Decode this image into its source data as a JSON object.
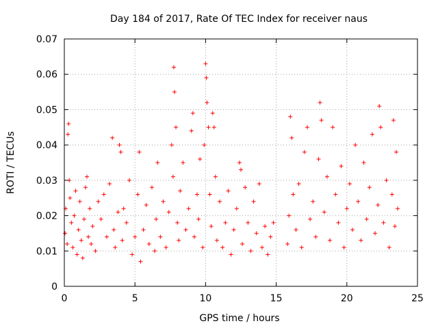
{
  "chart_data": {
    "type": "scatter",
    "title": "Day 184 of 2017, Rate Of TEC Index for receiver naus",
    "xlabel": "GPS time / hours",
    "ylabel": "ROTI / TECUs",
    "xlim": [
      0,
      25
    ],
    "ylim": [
      0,
      0.07
    ],
    "x_ticks": [
      0,
      5,
      10,
      15,
      20,
      25
    ],
    "x_tick_labels": [
      "0",
      "5",
      "10",
      "15",
      "20",
      "25"
    ],
    "y_ticks": [
      0,
      0.01,
      0.02,
      0.03,
      0.04,
      0.05,
      0.06,
      0.07
    ],
    "y_tick_labels": [
      "0",
      "0.01",
      "0.02",
      "0.03",
      "0.04",
      "0.05",
      "0.06",
      "0.07"
    ],
    "grid": true,
    "marker": "plus",
    "color": "#ff0000",
    "series": [
      {
        "values_xy": [
          [
            0.05,
            0.015
          ],
          [
            0.1,
            0.022
          ],
          [
            0.2,
            0.012
          ],
          [
            0.25,
            0.043
          ],
          [
            0.3,
            0.046
          ],
          [
            0.35,
            0.03
          ],
          [
            0.4,
            0.025
          ],
          [
            0.5,
            0.018
          ],
          [
            0.6,
            0.011
          ],
          [
            0.7,
            0.02
          ],
          [
            0.8,
            0.027
          ],
          [
            0.9,
            0.009
          ],
          [
            1.0,
            0.016
          ],
          [
            1.1,
            0.024
          ],
          [
            1.2,
            0.013
          ],
          [
            1.3,
            0.008
          ],
          [
            1.4,
            0.019
          ],
          [
            1.5,
            0.028
          ],
          [
            1.6,
            0.031
          ],
          [
            1.7,
            0.014
          ],
          [
            1.8,
            0.022
          ],
          [
            1.9,
            0.012
          ],
          [
            2.0,
            0.017
          ],
          [
            2.2,
            0.01
          ],
          [
            2.4,
            0.024
          ],
          [
            2.6,
            0.019
          ],
          [
            2.8,
            0.026
          ],
          [
            3.0,
            0.014
          ],
          [
            3.2,
            0.029
          ],
          [
            3.4,
            0.042
          ],
          [
            3.5,
            0.016
          ],
          [
            3.6,
            0.011
          ],
          [
            3.8,
            0.021
          ],
          [
            3.9,
            0.04
          ],
          [
            4.0,
            0.038
          ],
          [
            4.1,
            0.013
          ],
          [
            4.2,
            0.022
          ],
          [
            4.4,
            0.018
          ],
          [
            4.6,
            0.03
          ],
          [
            4.8,
            0.009
          ],
          [
            5.0,
            0.014
          ],
          [
            5.2,
            0.026
          ],
          [
            5.3,
            0.038
          ],
          [
            5.4,
            0.007
          ],
          [
            5.6,
            0.016
          ],
          [
            5.8,
            0.023
          ],
          [
            6.0,
            0.012
          ],
          [
            6.2,
            0.028
          ],
          [
            6.4,
            0.01
          ],
          [
            6.5,
            0.019
          ],
          [
            6.6,
            0.035
          ],
          [
            6.8,
            0.014
          ],
          [
            7.0,
            0.024
          ],
          [
            7.2,
            0.011
          ],
          [
            7.4,
            0.021
          ],
          [
            7.6,
            0.04
          ],
          [
            7.7,
            0.031
          ],
          [
            7.75,
            0.062
          ],
          [
            7.8,
            0.055
          ],
          [
            7.9,
            0.045
          ],
          [
            8.0,
            0.018
          ],
          [
            8.1,
            0.013
          ],
          [
            8.2,
            0.027
          ],
          [
            8.4,
            0.035
          ],
          [
            8.6,
            0.016
          ],
          [
            8.8,
            0.022
          ],
          [
            9.0,
            0.044
          ],
          [
            9.1,
            0.049
          ],
          [
            9.2,
            0.014
          ],
          [
            9.4,
            0.026
          ],
          [
            9.5,
            0.019
          ],
          [
            9.6,
            0.036
          ],
          [
            9.8,
            0.011
          ],
          [
            9.9,
            0.04
          ],
          [
            10.0,
            0.063
          ],
          [
            10.05,
            0.059
          ],
          [
            10.1,
            0.052
          ],
          [
            10.2,
            0.045
          ],
          [
            10.3,
            0.026
          ],
          [
            10.4,
            0.017
          ],
          [
            10.5,
            0.049
          ],
          [
            10.6,
            0.045
          ],
          [
            10.7,
            0.031
          ],
          [
            10.8,
            0.013
          ],
          [
            11.0,
            0.024
          ],
          [
            11.2,
            0.011
          ],
          [
            11.4,
            0.018
          ],
          [
            11.6,
            0.027
          ],
          [
            11.8,
            0.009
          ],
          [
            12.0,
            0.016
          ],
          [
            12.2,
            0.022
          ],
          [
            12.4,
            0.035
          ],
          [
            12.5,
            0.033
          ],
          [
            12.6,
            0.012
          ],
          [
            12.8,
            0.028
          ],
          [
            13.0,
            0.018
          ],
          [
            13.2,
            0.01
          ],
          [
            13.4,
            0.024
          ],
          [
            13.6,
            0.015
          ],
          [
            13.8,
            0.029
          ],
          [
            14.0,
            0.011
          ],
          [
            14.2,
            0.017
          ],
          [
            14.4,
            0.009
          ],
          [
            14.6,
            0.014
          ],
          [
            14.8,
            0.018
          ],
          [
            15.8,
            0.012
          ],
          [
            15.9,
            0.02
          ],
          [
            16.0,
            0.048
          ],
          [
            16.1,
            0.042
          ],
          [
            16.2,
            0.026
          ],
          [
            16.4,
            0.016
          ],
          [
            16.6,
            0.029
          ],
          [
            16.8,
            0.011
          ],
          [
            17.0,
            0.038
          ],
          [
            17.2,
            0.045
          ],
          [
            17.4,
            0.019
          ],
          [
            17.6,
            0.024
          ],
          [
            17.8,
            0.014
          ],
          [
            18.0,
            0.036
          ],
          [
            18.1,
            0.052
          ],
          [
            18.2,
            0.047
          ],
          [
            18.4,
            0.021
          ],
          [
            18.6,
            0.031
          ],
          [
            18.8,
            0.013
          ],
          [
            19.0,
            0.045
          ],
          [
            19.2,
            0.026
          ],
          [
            19.4,
            0.018
          ],
          [
            19.6,
            0.034
          ],
          [
            19.8,
            0.011
          ],
          [
            20.0,
            0.022
          ],
          [
            20.2,
            0.029
          ],
          [
            20.4,
            0.016
          ],
          [
            20.6,
            0.04
          ],
          [
            20.8,
            0.024
          ],
          [
            21.0,
            0.013
          ],
          [
            21.2,
            0.035
          ],
          [
            21.4,
            0.019
          ],
          [
            21.6,
            0.028
          ],
          [
            21.8,
            0.043
          ],
          [
            22.0,
            0.015
          ],
          [
            22.2,
            0.023
          ],
          [
            22.3,
            0.051
          ],
          [
            22.4,
            0.045
          ],
          [
            22.6,
            0.018
          ],
          [
            22.8,
            0.03
          ],
          [
            23.0,
            0.011
          ],
          [
            23.2,
            0.026
          ],
          [
            23.3,
            0.047
          ],
          [
            23.4,
            0.017
          ],
          [
            23.5,
            0.038
          ],
          [
            23.6,
            0.022
          ]
        ]
      }
    ]
  }
}
